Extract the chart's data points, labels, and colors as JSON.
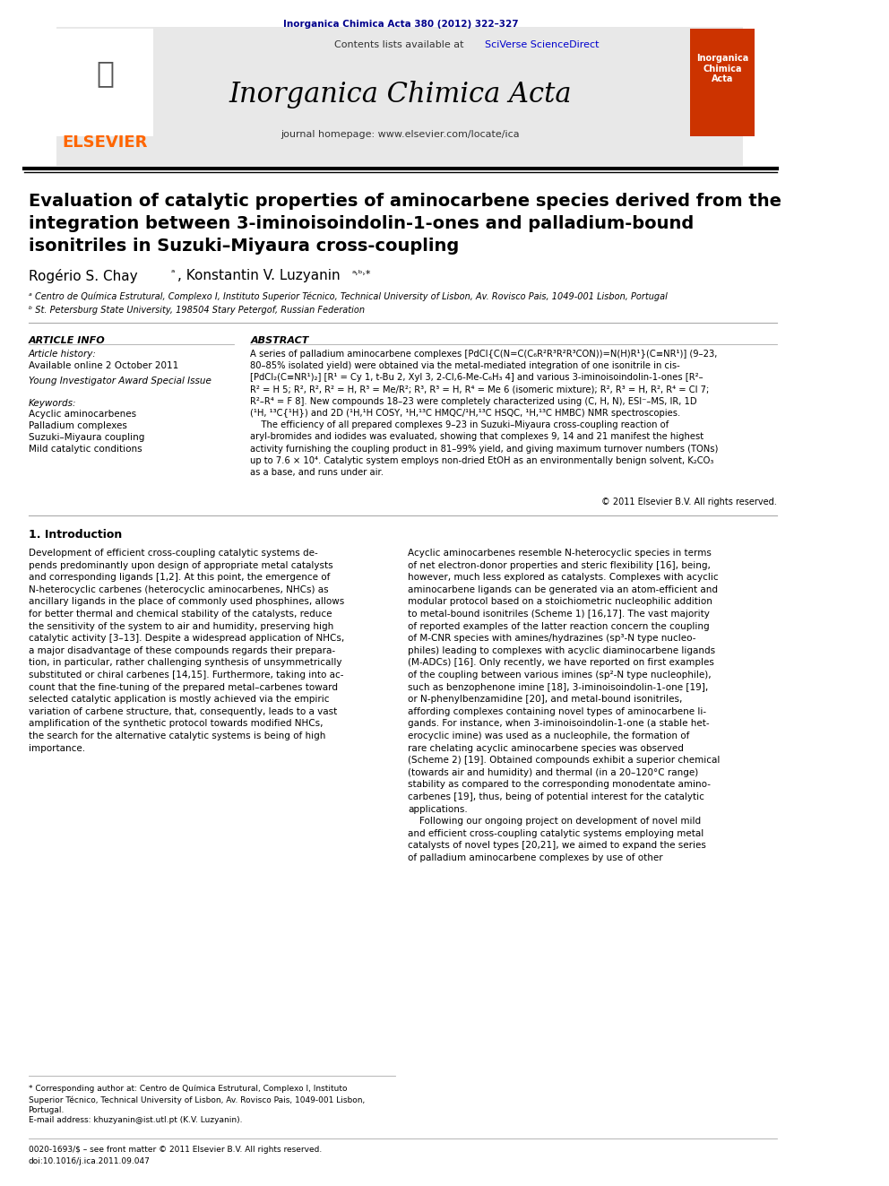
{
  "page_bg": "#ffffff",
  "top_citation": "Inorganica Chimica Acta 380 (2012) 322–327",
  "top_citation_color": "#00008B",
  "header_bg": "#e8e8e8",
  "header_text_contents": "Contents lists available at ",
  "header_sciverse": "SciVerse ScienceDirect",
  "header_sciverse_color": "#0000CD",
  "journal_name": "Inorganica Chimica Acta",
  "journal_homepage": "journal homepage: www.elsevier.com/locate/ica",
  "elsevier_color": "#FF6600",
  "divider_color": "#000000",
  "paper_title": "Evaluation of catalytic properties of aminocarbene species derived from the\nintegration between 3-iminoisoindolin-1-ones and palladium-bound\nisonitriles in Suzuki–Miyaura cross-coupling",
  "authors": "Rogério S. Chay ᵃ, Konstantin V. Luzyanin ᵃʷ*",
  "affiliation_a": "ᵃ Centro de Química Estrutural, Complexo I, Instituto Superior Técnico, Technical University of Lisbon, Av. Rovisco Pais, 1049-001 Lisbon, Portugal",
  "affiliation_b": "ᵇ St. Petersburg State University, 198504 Stary Petergof, Russian Federation",
  "article_info_title": "ARTICLE INFO",
  "article_history_label": "Article history:",
  "article_history": "Available online 2 October 2011",
  "special_issue_label": "Young Investigator Award Special Issue",
  "keywords_label": "Keywords:",
  "keyword1": "Acyclic aminocarbenes",
  "keyword2": "Palladium complexes",
  "keyword3": "Suzuki–Miyaura coupling",
  "keyword4": "Mild catalytic conditions",
  "abstract_title": "ABSTRACT",
  "abstract_text": "A series of palladium aminocarbene complexes [PdCl{C(N=C(C₆R²R³R²R³CON))=N(H)R¹}(C≡NR¹)] (9–23,\n80–85% isolated yield) were obtained via the metal-mediated integration of one isonitrile in cis-\n[PdCl₂(C≡NR¹)₂] [R¹ = Cy 1, t-Bu 2, Xyl 3, 2-Cl,6-Me-C₆H₃ 4] and various 3-iminoisoindolin-1-ones [R²–\nR² = H 5; R², R², R² = H, R³ = Me/R²; R³, R³ = H, R⁴ = Me 6 (isomeric mixture); R², R³ = H, R², R⁴ = Cl 7;\nR²–R⁴ = F 8]. New compounds 18–23 were completely characterized using (C, H, N), ESI⁻–MS, IR, 1D\n(¹H, ¹³C{¹H}) and 2D (¹H,¹H COSY, ¹H,¹³C HMQC/¹H,¹³C HSQC, ¹H,¹³C HMBC) NMR spectroscopies.\n    The efficiency of all prepared complexes 9–23 in Suzuki–Miyaura cross-coupling reaction of\naryl-bromides and iodides was evaluated, showing that complexes 9, 14 and 21 manifest the highest\nactivity furnishing the coupling product in 81–99% yield, and giving maximum turnover numbers (TONs)\nup to 7.6 × 10⁴. Catalytic system employs non-dried EtOH as an environmentally benign solvent, K₂CO₃\nas a base, and runs under air.",
  "copyright": "© 2011 Elsevier B.V. All rights reserved.",
  "section1_title": "1. Introduction",
  "intro_col1": "Development of efficient cross-coupling catalytic systems de-\npends predominantly upon design of appropriate metal catalysts\nand corresponding ligands [1,2]. At this point, the emergence of\nN-heterocyclic carbenes (heterocyclic aminocarbenes, NHCs) as\nancillary ligands in the place of commonly used phosphines, allows\nfor better thermal and chemical stability of the catalysts, reduce\nthe sensitivity of the system to air and humidity, preserving high\ncatalytic activity [3–13]. Despite a widespread application of NHCs,\na major disadvantage of these compounds regards their prepara-\ntion, in particular, rather challenging synthesis of unsymmetrically\nsubstituted or chiral carbenes [14,15]. Furthermore, taking into ac-\ncount that the fine-tuning of the prepared metal–carbenes toward\nselected catalytic application is mostly achieved via the empiric\nvariation of carbene structure, that, consequently, leads to a vast\namplification of the synthetic protocol towards modified NHCs,\nthe search for the alternative catalytic systems is being of high\nimportance.",
  "intro_col2": "Acyclic aminocarbenes resemble N-heterocyclic species in terms\nof net electron-donor properties and steric flexibility [16], being,\nhowever, much less explored as catalysts. Complexes with acyclic\naminocarbene ligands can be generated via an atom-efficient and\nmodular protocol based on a stoichiometric nucleophilic addition\nto metal-bound isonitriles (Scheme 1) [16,17]. The vast majority\nof reported examples of the latter reaction concern the coupling\nof M-CNR species with amines/hydrazines (sp³-N type nucleo-\nphiles) leading to complexes with acyclic diaminocarbene ligands\n(M-ADCs) [16]. Only recently, we have reported on first examples\nof the coupling between various imines (sp²-N type nucleophile),\nsuch as benzophenone imine [18], 3-iminoisoindolin-1-one [19],\nor N-phenylbenzamidine [20], and metal-bound isonitriles,\naffording complexes containing novel types of aminocarbene li-\ngands. For instance, when 3-iminoisoindolin-1-one (a stable het-\nerocyclic imine) was used as a nucleophile, the formation of\nrare chelating acyclic aminocarbene species was observed\n(Scheme 2) [19]. Obtained compounds exhibit a superior chemical\n(towards air and humidity) and thermal (in a 20–120°C range)\nstability as compared to the corresponding monodentate amino-\ncarbenes [19], thus, being of potential interest for the catalytic\napplications.\n    Following our ongoing project on development of novel mild\nand efficient cross-coupling catalytic systems employing metal\ncatalysts of novel types [20,21], we aimed to expand the series\nof palladium aminocarbene complexes by use of other",
  "footnote_star": "* Corresponding author at: Centro de Química Estrutural, Complexo I, Instituto\nSuperior Técnico, Technical University of Lisbon, Av. Rovisco Pais, 1049-001 Lisbon,\nPortugal.",
  "footnote_email": "E-mail address: khuzyanin@ist.utl.pt (K.V. Luzyanin).",
  "footnote_issn": "0020-1693/$ – see front matter © 2011 Elsevier B.V. All rights reserved.",
  "footnote_doi": "doi:10.1016/j.ica.2011.09.047"
}
